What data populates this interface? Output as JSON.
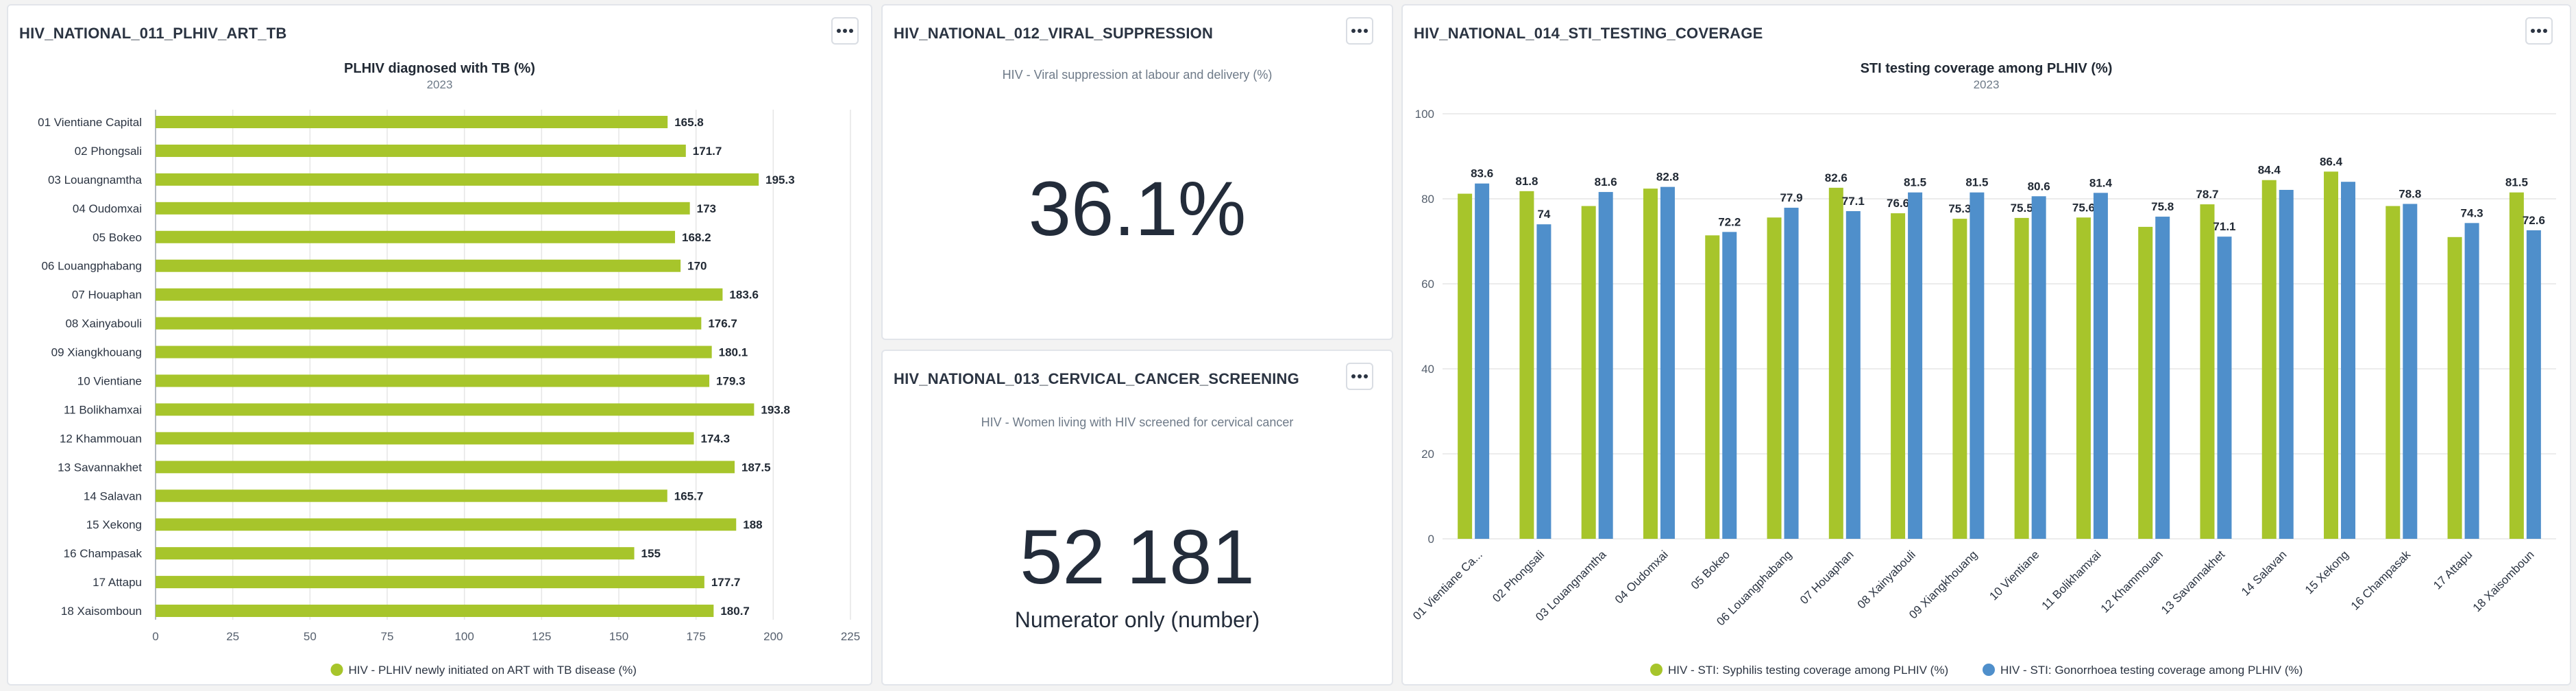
{
  "panels": {
    "p1": {
      "title": "HIV_NATIONAL_011_PLHIV_ART_TB"
    },
    "p2": {
      "title": "HIV_NATIONAL_012_VIRAL_SUPPRESSION",
      "subtitle": "HIV - Viral suppression at labour and delivery (%)",
      "value": "36.1%"
    },
    "p3": {
      "title": "HIV_NATIONAL_013_CERVICAL_CANCER_SCREENING",
      "subtitle": "HIV - Women living with HIV screened for cervical cancer",
      "value": "52 181",
      "caption": "Numerator only (number)"
    },
    "p4": {
      "title": "HIV_NATIONAL_014_STI_TESTING_COVERAGE"
    }
  },
  "colors": {
    "green": "#a7c52b",
    "blue": "#4f8fcb",
    "grid": "#e6e6e6",
    "axis": "#6e7a88"
  },
  "icons": {
    "menu": "more-horizontal-icon"
  },
  "chart_data": [
    {
      "type": "bar",
      "orientation": "horizontal",
      "title": "PLHIV diagnosed with TB (%)",
      "subtitle": "2023",
      "categories": [
        "01 Vientiane Capital",
        "02 Phongsali",
        "03 Louangnamtha",
        "04 Oudomxai",
        "05 Bokeo",
        "06 Louangphabang",
        "07 Houaphan",
        "08 Xainyabouli",
        "09 Xiangkhouang",
        "10 Vientiane",
        "11 Bolikhamxai",
        "12 Khammouan",
        "13 Savannakhet",
        "14 Salavan",
        "15 Xekong",
        "16 Champasak",
        "17 Attapu",
        "18 Xaisomboun"
      ],
      "series": [
        {
          "name": "HIV - PLHIV newly initiated on ART with TB disease (%)",
          "values": [
            165.8,
            171.7,
            195.3,
            173,
            168.2,
            170,
            183.6,
            176.7,
            180.1,
            179.3,
            193.8,
            174.3,
            187.5,
            165.7,
            188,
            155,
            177.7,
            180.7
          ]
        }
      ],
      "xlim": [
        0,
        225
      ],
      "ticks": [
        0,
        25,
        50,
        75,
        100,
        125,
        150,
        175,
        200,
        225
      ],
      "grid": true,
      "legend": "bottom"
    },
    {
      "type": "bar",
      "title": "STI testing coverage among PLHIV (%)",
      "subtitle": "2023",
      "categories": [
        "01 Vientiane Ca...",
        "02 Phongsali",
        "03 Louangnamtha",
        "04 Oudomxai",
        "05 Bokeo",
        "06 Louangphabang",
        "07 Houaphan",
        "08 Xainyabouli",
        "09 Xiangkhouang",
        "10 Vientiane",
        "11 Bolikhamxai",
        "12 Khammouan",
        "13 Savannakhet",
        "14 Salavan",
        "15 Xekong",
        "16 Champasak",
        "17 Attapu",
        "18 Xaisomboun"
      ],
      "series": [
        {
          "name": "HIV - STI: Syphilis testing coverage among PLHIV (%)",
          "values": [
            81.2,
            81.8,
            78.3,
            82.4,
            71.4,
            75.6,
            82.6,
            76.6,
            75.3,
            75.5,
            75.6,
            73.4,
            78.7,
            84.4,
            86.4,
            78.3,
            71,
            81.5
          ]
        },
        {
          "name": "HIV - STI: Gonorrhoea testing coverage among PLHIV (%)",
          "values": [
            83.6,
            74,
            81.6,
            82.8,
            72.2,
            77.9,
            77.1,
            81.5,
            81.5,
            80.6,
            81.4,
            75.8,
            71.1,
            82.1,
            84,
            78.8,
            74.3,
            72.6
          ]
        }
      ],
      "labels": [
        [
          null,
          81.8,
          null,
          null,
          null,
          null,
          82.6,
          76.6,
          75.3,
          75.5,
          75.6,
          null,
          78.7,
          84.4,
          86.4,
          null,
          null,
          81.5
        ],
        [
          83.6,
          74,
          81.6,
          82.8,
          72.2,
          77.9,
          77.1,
          81.5,
          81.5,
          80.6,
          81.4,
          75.8,
          71.1,
          null,
          null,
          78.8,
          74.3,
          72.6
        ]
      ],
      "ylim": [
        0,
        100
      ],
      "ticks": [
        0,
        20,
        40,
        60,
        80,
        100
      ],
      "grid": true,
      "legend": "bottom"
    }
  ]
}
